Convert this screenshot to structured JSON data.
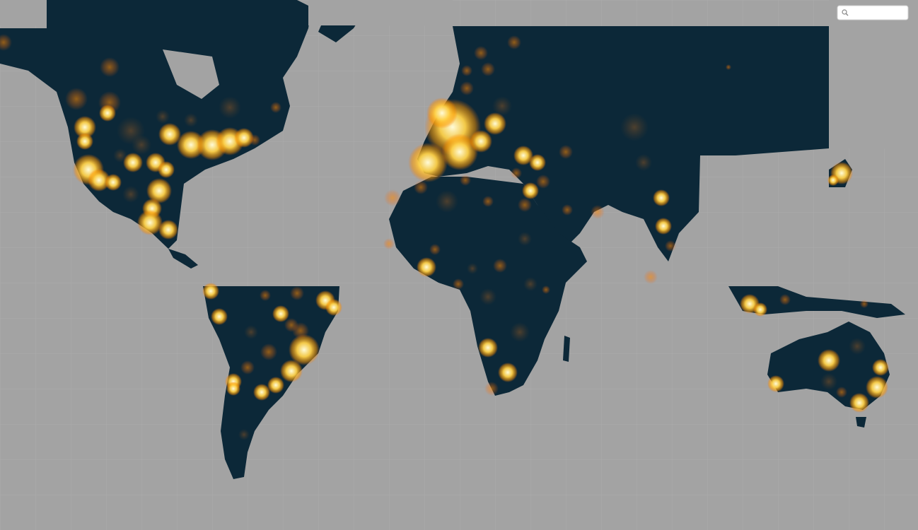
{
  "map": {
    "land_color": "#0c2838",
    "ocean_color": "#a3a3a3",
    "glow_colors": [
      "#ff7a00",
      "#ffb000",
      "#fff2a0"
    ]
  },
  "search": {
    "icon": "search-icon",
    "value": "",
    "placeholder": ""
  }
}
